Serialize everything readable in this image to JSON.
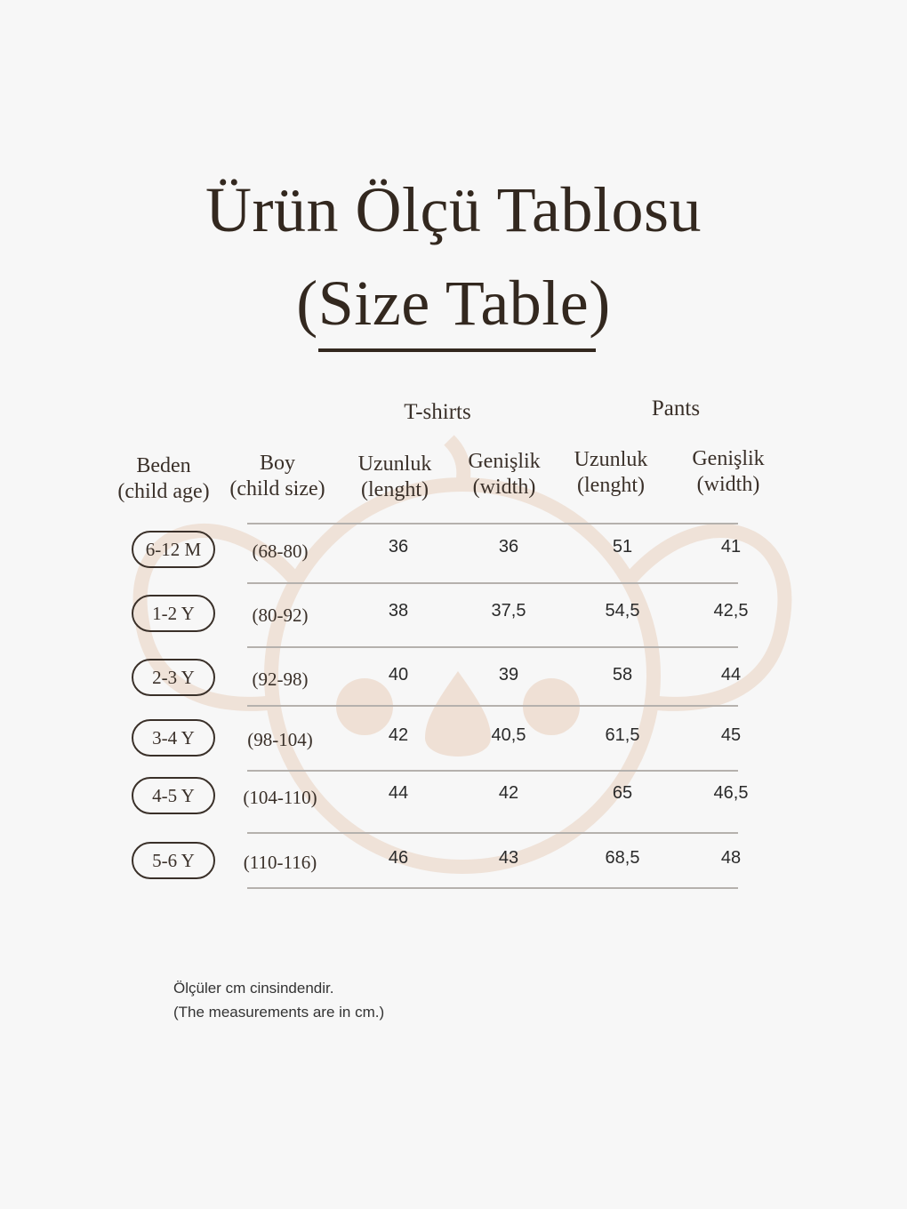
{
  "title_line1": "Ürün Ölçü Tablosu",
  "title_line2": "(Size Table)",
  "groups": {
    "tshirts": "T-shirts",
    "pants": "Pants"
  },
  "headers": [
    {
      "line1": "Beden",
      "line2": "(child age)"
    },
    {
      "line1": "Boy",
      "line2": "(child size)"
    },
    {
      "line1": "Uzunluk",
      "line2": "(lenght)"
    },
    {
      "line1": "Genişlik",
      "line2": "(width)"
    },
    {
      "line1": "Uzunluk",
      "line2": "(lenght)"
    },
    {
      "line1": "Genişlik",
      "line2": "(width)"
    }
  ],
  "rows": [
    {
      "age": "6-12 M",
      "size": "(68-80)",
      "ts_len": "36",
      "ts_wid": "36",
      "p_len": "51",
      "p_wid": "41"
    },
    {
      "age": "1-2 Y",
      "size": "(80-92)",
      "ts_len": "38",
      "ts_wid": "37,5",
      "p_len": "54,5",
      "p_wid": "42,5"
    },
    {
      "age": "2-3 Y",
      "size": "(92-98)",
      "ts_len": "40",
      "ts_wid": "39",
      "p_len": "58",
      "p_wid": "44"
    },
    {
      "age": "3-4 Y",
      "size": "(98-104)",
      "ts_len": "42",
      "ts_wid": "40,5",
      "p_len": "61,5",
      "p_wid": "45"
    },
    {
      "age": "4-5 Y",
      "size": "(104-110)",
      "ts_len": "44",
      "ts_wid": "42",
      "p_len": "65",
      "p_wid": "46,5"
    },
    {
      "age": "5-6 Y",
      "size": "(110-116)",
      "ts_len": "46",
      "ts_wid": "43",
      "p_len": "68,5",
      "p_wid": "48"
    }
  ],
  "note_line1": "Ölçüler cm cinsindendir.",
  "note_line2": "(The measurements are in cm.)",
  "colors": {
    "text": "#33281f",
    "watermark": "#efe0d5",
    "background": "#f7f7f7"
  },
  "watermark_icon": "koala-icon"
}
